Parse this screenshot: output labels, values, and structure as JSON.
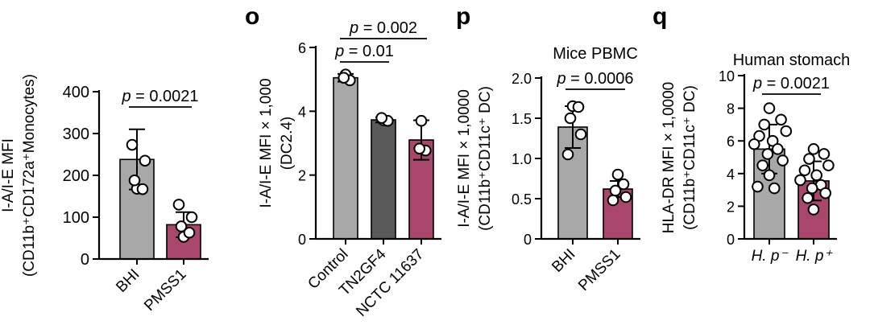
{
  "panels": [
    {
      "id": "n",
      "letter": "",
      "ylabel_lines": [
        "I-A/I-E MFI",
        "(CD11b⁺CD172a⁺Monocytes)"
      ],
      "title": ""
    },
    {
      "id": "o",
      "letter": "o",
      "ylabel_lines": [
        "I-A/I-E MFI × 1,000",
        "(DC2.4)"
      ],
      "title": ""
    },
    {
      "id": "p",
      "letter": "p",
      "ylabel_lines": [
        "I-A/I-E MFI × 1,0000",
        "(CD11b⁺CD11c⁺ DC)"
      ],
      "title": "Mice PBMC"
    },
    {
      "id": "q",
      "letter": "q",
      "ylabel_lines": [
        "HLA-DR MFI × 1,0000",
        "(CD11b⁺CD11c⁺ DC)"
      ],
      "title": "Human stomach"
    }
  ],
  "chart_data": [
    {
      "type": "bar",
      "panel": "n",
      "title": "",
      "categories": [
        "BHI",
        "PMSS1"
      ],
      "values": [
        238,
        82
      ],
      "error_sd": [
        72,
        30
      ],
      "points": [
        [
          168,
          167,
          188,
          235,
          273
        ],
        [
          53,
          63,
          78,
          100,
          130
        ]
      ],
      "colors": [
        "#a8a8a8",
        "#a8476b"
      ],
      "ylim": [
        0,
        400
      ],
      "yticks": [
        0,
        100,
        200,
        300,
        400
      ],
      "ytick_labels": [
        "0",
        "100",
        "200",
        "300",
        "400"
      ],
      "significance": [
        {
          "a": 0,
          "b": 1,
          "label": "p = 0.0021"
        }
      ]
    },
    {
      "type": "bar",
      "panel": "o",
      "title": "",
      "categories": [
        "Control",
        "TN2GF4",
        "NCTC 11637"
      ],
      "values": [
        5.05,
        3.73,
        3.1
      ],
      "error_sd": [
        0.12,
        0.08,
        0.62
      ],
      "points": [
        [
          5.15,
          4.97,
          5.05
        ],
        [
          3.72,
          3.7,
          3.79
        ],
        [
          3.7,
          2.77,
          2.83
        ]
      ],
      "colors": [
        "#a8a8a8",
        "#5a5a5a",
        "#a8476b"
      ],
      "ylim": [
        0,
        6
      ],
      "yticks": [
        0,
        2,
        4,
        6
      ],
      "ytick_labels": [
        "0",
        "2",
        "4",
        "6"
      ],
      "significance": [
        {
          "a": 0,
          "b": 1,
          "label": "p = 0.01"
        },
        {
          "a": 0,
          "b": 2,
          "label": "p = 0.002"
        }
      ]
    },
    {
      "type": "bar",
      "panel": "p",
      "title": "Mice PBMC",
      "categories": [
        "BHI",
        "PMSS1"
      ],
      "values": [
        1.39,
        0.62
      ],
      "error_sd": [
        0.26,
        0.1
      ],
      "points": [
        [
          1.65,
          1.64,
          1.5,
          1.3,
          1.05
        ],
        [
          0.8,
          0.68,
          0.6,
          0.52,
          0.48
        ]
      ],
      "colors": [
        "#a8a8a8",
        "#a8476b"
      ],
      "ylim": [
        0,
        2.0
      ],
      "yticks": [
        0,
        0.5,
        1.0,
        1.5,
        2.0
      ],
      "ytick_labels": [
        "0",
        "0.5",
        "1.0",
        "1.5",
        "2.0"
      ],
      "significance": [
        {
          "a": 0,
          "b": 1,
          "label": "p = 0.0006"
        }
      ]
    },
    {
      "type": "bar",
      "panel": "q",
      "title": "Human stomach",
      "categories": [
        "H. p⁻",
        "H. p⁺"
      ],
      "values": [
        5.5,
        3.55
      ],
      "error_sd": [
        1.5,
        1.2
      ],
      "points": [
        [
          8.0,
          7.3,
          7.0,
          6.6,
          6.3,
          6.0,
          5.8,
          5.5,
          5.2,
          4.8,
          4.5,
          3.9,
          3.2,
          3.1
        ],
        [
          5.5,
          5.2,
          4.9,
          4.5,
          4.2,
          3.9,
          3.6,
          3.3,
          3.1,
          2.8,
          2.5,
          1.8
        ]
      ],
      "colors": [
        "#a8a8a8",
        "#a8476b"
      ],
      "ylim": [
        0,
        10
      ],
      "yticks": [
        0,
        2,
        4,
        6,
        8,
        10
      ],
      "ytick_labels": [
        "0",
        "2",
        "4",
        "6",
        "8",
        "10"
      ],
      "significance": [
        {
          "a": 0,
          "b": 1,
          "label": "p = 0.0021"
        }
      ]
    }
  ]
}
